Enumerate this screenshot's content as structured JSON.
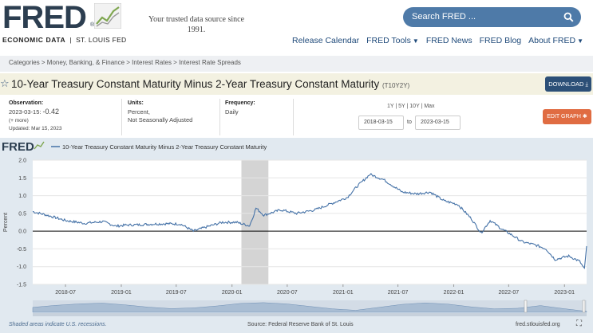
{
  "header": {
    "logo_word": "FRED",
    "logo_reg": "®",
    "logo_sub_left": "ECONOMIC DATA",
    "logo_sub_sep": "|",
    "logo_sub_right": "ST. LOUIS FED",
    "tagline": "Your trusted data source since 1991.",
    "search_placeholder": "Search FRED ...",
    "nav": [
      {
        "label": "Release Calendar",
        "caret": false
      },
      {
        "label": "FRED Tools",
        "caret": true
      },
      {
        "label": "FRED News",
        "caret": false
      },
      {
        "label": "FRED Blog",
        "caret": false
      },
      {
        "label": "About FRED",
        "caret": true
      }
    ]
  },
  "breadcrumb": "Categories > Money, Banking, & Finance > Interest Rates > Interest Rate Spreads",
  "series": {
    "title": "10-Year Treasury Constant Maturity Minus 2-Year Treasury Constant Maturity",
    "id": "(T10Y2Y)",
    "download_label": "DOWNLOAD",
    "edit_label": "EDIT GRAPH"
  },
  "observation": {
    "label": "Observation:",
    "date": "2023-03-15:",
    "value": "-0.42",
    "more": "(+ more)",
    "updated": "Updated: Mar 15, 2023"
  },
  "units": {
    "label": "Units:",
    "line1": "Percent,",
    "line2": "Not Seasonally Adjusted"
  },
  "frequency": {
    "label": "Frequency:",
    "value": "Daily"
  },
  "range": {
    "options": "1Y | 5Y | 10Y | Max",
    "start": "2018-03-15",
    "to": "to",
    "end": "2023-03-15"
  },
  "footer": {
    "recession_note": "Shaded areas indicate U.S. recessions.",
    "source": "Source: Federal Reserve Bank of St. Louis",
    "site": "fred.stlouisfed.org"
  },
  "colors": {
    "line": "#4572a7",
    "recession": "#d4d4d4",
    "brand": "#2c4f77",
    "accent": "#e06c42"
  },
  "chart_data": {
    "type": "line",
    "title": "",
    "legend": "10-Year Treasury Constant Maturity Minus 2-Year Treasury Constant Maturity",
    "legend_logo": "FRED",
    "ylabel": "Percent",
    "xlabel": "",
    "ylim": [
      -1.5,
      2.0
    ],
    "yticks": [
      -1.5,
      -1.0,
      -0.5,
      0.0,
      0.5,
      1.0,
      1.5,
      2.0
    ],
    "xlim": [
      "2018-03-15",
      "2023-03-15"
    ],
    "xticks": [
      "2018-07",
      "2019-01",
      "2019-07",
      "2020-01",
      "2020-07",
      "2021-01",
      "2021-07",
      "2022-01",
      "2022-07",
      "2023-01"
    ],
    "grid": true,
    "recessions": [
      {
        "start": "2020-02-01",
        "end": "2020-04-30"
      }
    ],
    "series": [
      {
        "name": "10-Year Treasury Constant Maturity Minus 2-Year Treasury Constant Maturity",
        "points": [
          [
            "2018-03-15",
            0.55
          ],
          [
            "2018-05-01",
            0.45
          ],
          [
            "2018-07-01",
            0.3
          ],
          [
            "2018-09-01",
            0.22
          ],
          [
            "2018-11-01",
            0.27
          ],
          [
            "2018-12-15",
            0.14
          ],
          [
            "2019-01-15",
            0.17
          ],
          [
            "2019-03-01",
            0.18
          ],
          [
            "2019-04-15",
            0.2
          ],
          [
            "2019-06-01",
            0.21
          ],
          [
            "2019-07-15",
            0.2
          ],
          [
            "2019-08-27",
            0.0
          ],
          [
            "2019-10-01",
            0.1
          ],
          [
            "2019-12-01",
            0.25
          ],
          [
            "2020-01-15",
            0.25
          ],
          [
            "2020-02-28",
            0.15
          ],
          [
            "2020-03-10",
            0.4
          ],
          [
            "2020-03-20",
            0.65
          ],
          [
            "2020-04-15",
            0.45
          ],
          [
            "2020-06-10",
            0.6
          ],
          [
            "2020-08-01",
            0.5
          ],
          [
            "2020-10-01",
            0.6
          ],
          [
            "2020-12-01",
            0.8
          ],
          [
            "2021-01-15",
            0.95
          ],
          [
            "2021-02-15",
            1.25
          ],
          [
            "2021-03-31",
            1.6
          ],
          [
            "2021-05-15",
            1.45
          ],
          [
            "2021-07-15",
            1.1
          ],
          [
            "2021-09-01",
            1.05
          ],
          [
            "2021-10-15",
            1.1
          ],
          [
            "2021-12-01",
            0.85
          ],
          [
            "2022-01-15",
            0.75
          ],
          [
            "2022-02-28",
            0.35
          ],
          [
            "2022-04-01",
            -0.05
          ],
          [
            "2022-05-01",
            0.3
          ],
          [
            "2022-06-10",
            0.05
          ],
          [
            "2022-07-10",
            -0.1
          ],
          [
            "2022-08-15",
            -0.3
          ],
          [
            "2022-10-01",
            -0.4
          ],
          [
            "2022-11-01",
            -0.5
          ],
          [
            "2022-12-01",
            -0.8
          ],
          [
            "2023-01-15",
            -0.7
          ],
          [
            "2023-02-20",
            -0.85
          ],
          [
            "2023-03-08",
            -1.07
          ],
          [
            "2023-03-15",
            -0.42
          ]
        ]
      }
    ]
  }
}
